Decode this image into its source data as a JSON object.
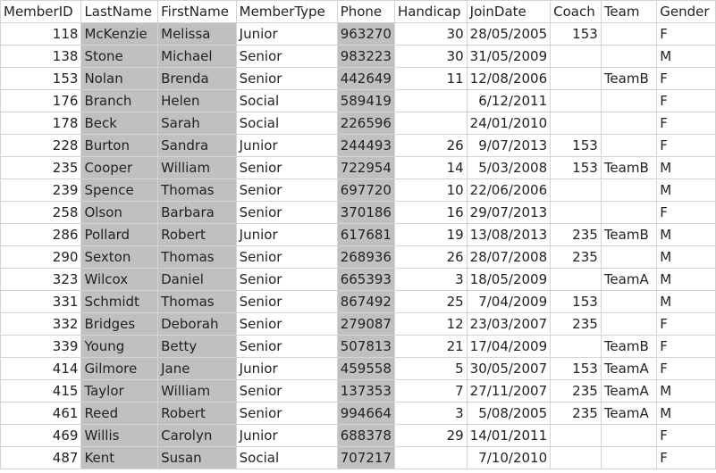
{
  "sheet": {
    "headers": [
      "MemberID",
      "LastName",
      "FirstName",
      "MemberType",
      "Phone",
      "Handicap",
      "JoinDate",
      "Coach",
      "Team",
      "Gender"
    ],
    "rows": [
      [
        "118",
        "McKenzie",
        "Melissa",
        "Junior",
        "963270",
        "30",
        "28/05/2005",
        "153",
        "",
        "F"
      ],
      [
        "138",
        "Stone",
        "Michael",
        "Senior",
        "983223",
        "30",
        "31/05/2009",
        "",
        "",
        "M"
      ],
      [
        "153",
        "Nolan",
        "Brenda",
        "Senior",
        "442649",
        "11",
        "12/08/2006",
        "",
        "TeamB",
        "F"
      ],
      [
        "176",
        "Branch",
        "Helen",
        "Social",
        "589419",
        "",
        "6/12/2011",
        "",
        "",
        "F"
      ],
      [
        "178",
        "Beck",
        "Sarah",
        "Social",
        "226596",
        "",
        "24/01/2010",
        "",
        "",
        "F"
      ],
      [
        "228",
        "Burton",
        "Sandra",
        "Junior",
        "244493",
        "26",
        "9/07/2013",
        "153",
        "",
        "F"
      ],
      [
        "235",
        "Cooper",
        "William",
        "Senior",
        "722954",
        "14",
        "5/03/2008",
        "153",
        "TeamB",
        "M"
      ],
      [
        "239",
        "Spence",
        "Thomas",
        "Senior",
        "697720",
        "10",
        "22/06/2006",
        "",
        "",
        "M"
      ],
      [
        "258",
        "Olson",
        "Barbara",
        "Senior",
        "370186",
        "16",
        "29/07/2013",
        "",
        "",
        "F"
      ],
      [
        "286",
        "Pollard",
        "Robert",
        "Junior",
        "617681",
        "19",
        "13/08/2013",
        "235",
        "TeamB",
        "M"
      ],
      [
        "290",
        "Sexton",
        "Thomas",
        "Senior",
        "268936",
        "26",
        "28/07/2008",
        "235",
        "",
        "M"
      ],
      [
        "323",
        "Wilcox",
        "Daniel",
        "Senior",
        "665393",
        "3",
        "18/05/2009",
        "",
        "TeamA",
        "M"
      ],
      [
        "331",
        "Schmidt",
        "Thomas",
        "Senior",
        "867492",
        "25",
        "7/04/2009",
        "153",
        "",
        "M"
      ],
      [
        "332",
        "Bridges",
        "Deborah",
        "Senior",
        "279087",
        "12",
        "23/03/2007",
        "235",
        "",
        "F"
      ],
      [
        "339",
        "Young",
        "Betty",
        "Senior",
        "507813",
        "21",
        "17/04/2009",
        "",
        "TeamB",
        "F"
      ],
      [
        "414",
        "Gilmore",
        "Jane",
        "Junior",
        "459558",
        "5",
        "30/05/2007",
        "153",
        "TeamA",
        "F"
      ],
      [
        "415",
        "Taylor",
        "William",
        "Senior",
        "137353",
        "7",
        "27/11/2007",
        "235",
        "TeamA",
        "M"
      ],
      [
        "461",
        "Reed",
        "Robert",
        "Senior",
        "994664",
        "3",
        "5/08/2005",
        "235",
        "TeamA",
        "M"
      ],
      [
        "469",
        "Willis",
        "Carolyn",
        "Junior",
        "688378",
        "29",
        "14/01/2011",
        "",
        "",
        "F"
      ],
      [
        "487",
        "Kent",
        "Susan",
        "Social",
        "707217",
        "",
        "7/10/2010",
        "",
        "",
        "F"
      ]
    ]
  }
}
